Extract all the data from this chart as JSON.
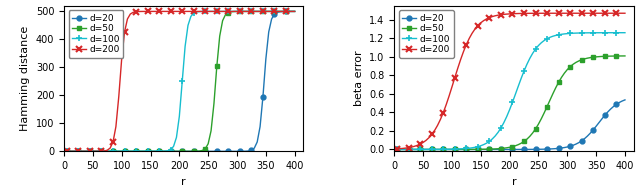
{
  "d_values": [
    20,
    50,
    100,
    200
  ],
  "colors": [
    "#1f77b4",
    "#2ca02c",
    "#17becf",
    "#d62728"
  ],
  "markers": [
    "o",
    "s",
    "+",
    "x"
  ],
  "r_min": 5,
  "r_max": 400,
  "r_step": 5,
  "n": 500,
  "hamming_thresholds": [
    347,
    263,
    205,
    97
  ],
  "hamming_steepness": [
    0.22,
    0.22,
    0.22,
    0.22
  ],
  "beta_thresholds": [
    355,
    268,
    212,
    103
  ],
  "beta_steepness": [
    0.055,
    0.055,
    0.055,
    0.055
  ],
  "beta_max": [
    0.58,
    1.01,
    1.26,
    1.47
  ],
  "xlabel": "r",
  "ylabel_left": "Hamming distance",
  "ylabel_right": "beta error",
  "ylim_left": [
    0,
    520
  ],
  "ylim_right": [
    -0.02,
    1.55
  ],
  "xlim": [
    0,
    415
  ],
  "yticks_left": [
    0,
    100,
    200,
    300,
    400,
    500
  ],
  "yticks_right": [
    0.0,
    0.2,
    0.4,
    0.6,
    0.8,
    1.0,
    1.2,
    1.4
  ],
  "xticks": [
    0,
    50,
    100,
    150,
    200,
    250,
    300,
    350,
    400
  ],
  "marker_every": 4,
  "markersize_circle": 3.5,
  "markersize_square": 3.5,
  "markersize_plus": 5,
  "markersize_x": 5,
  "linewidth": 1.0,
  "legend_fontsize": 6.5,
  "tick_fontsize": 7,
  "label_fontsize": 8
}
